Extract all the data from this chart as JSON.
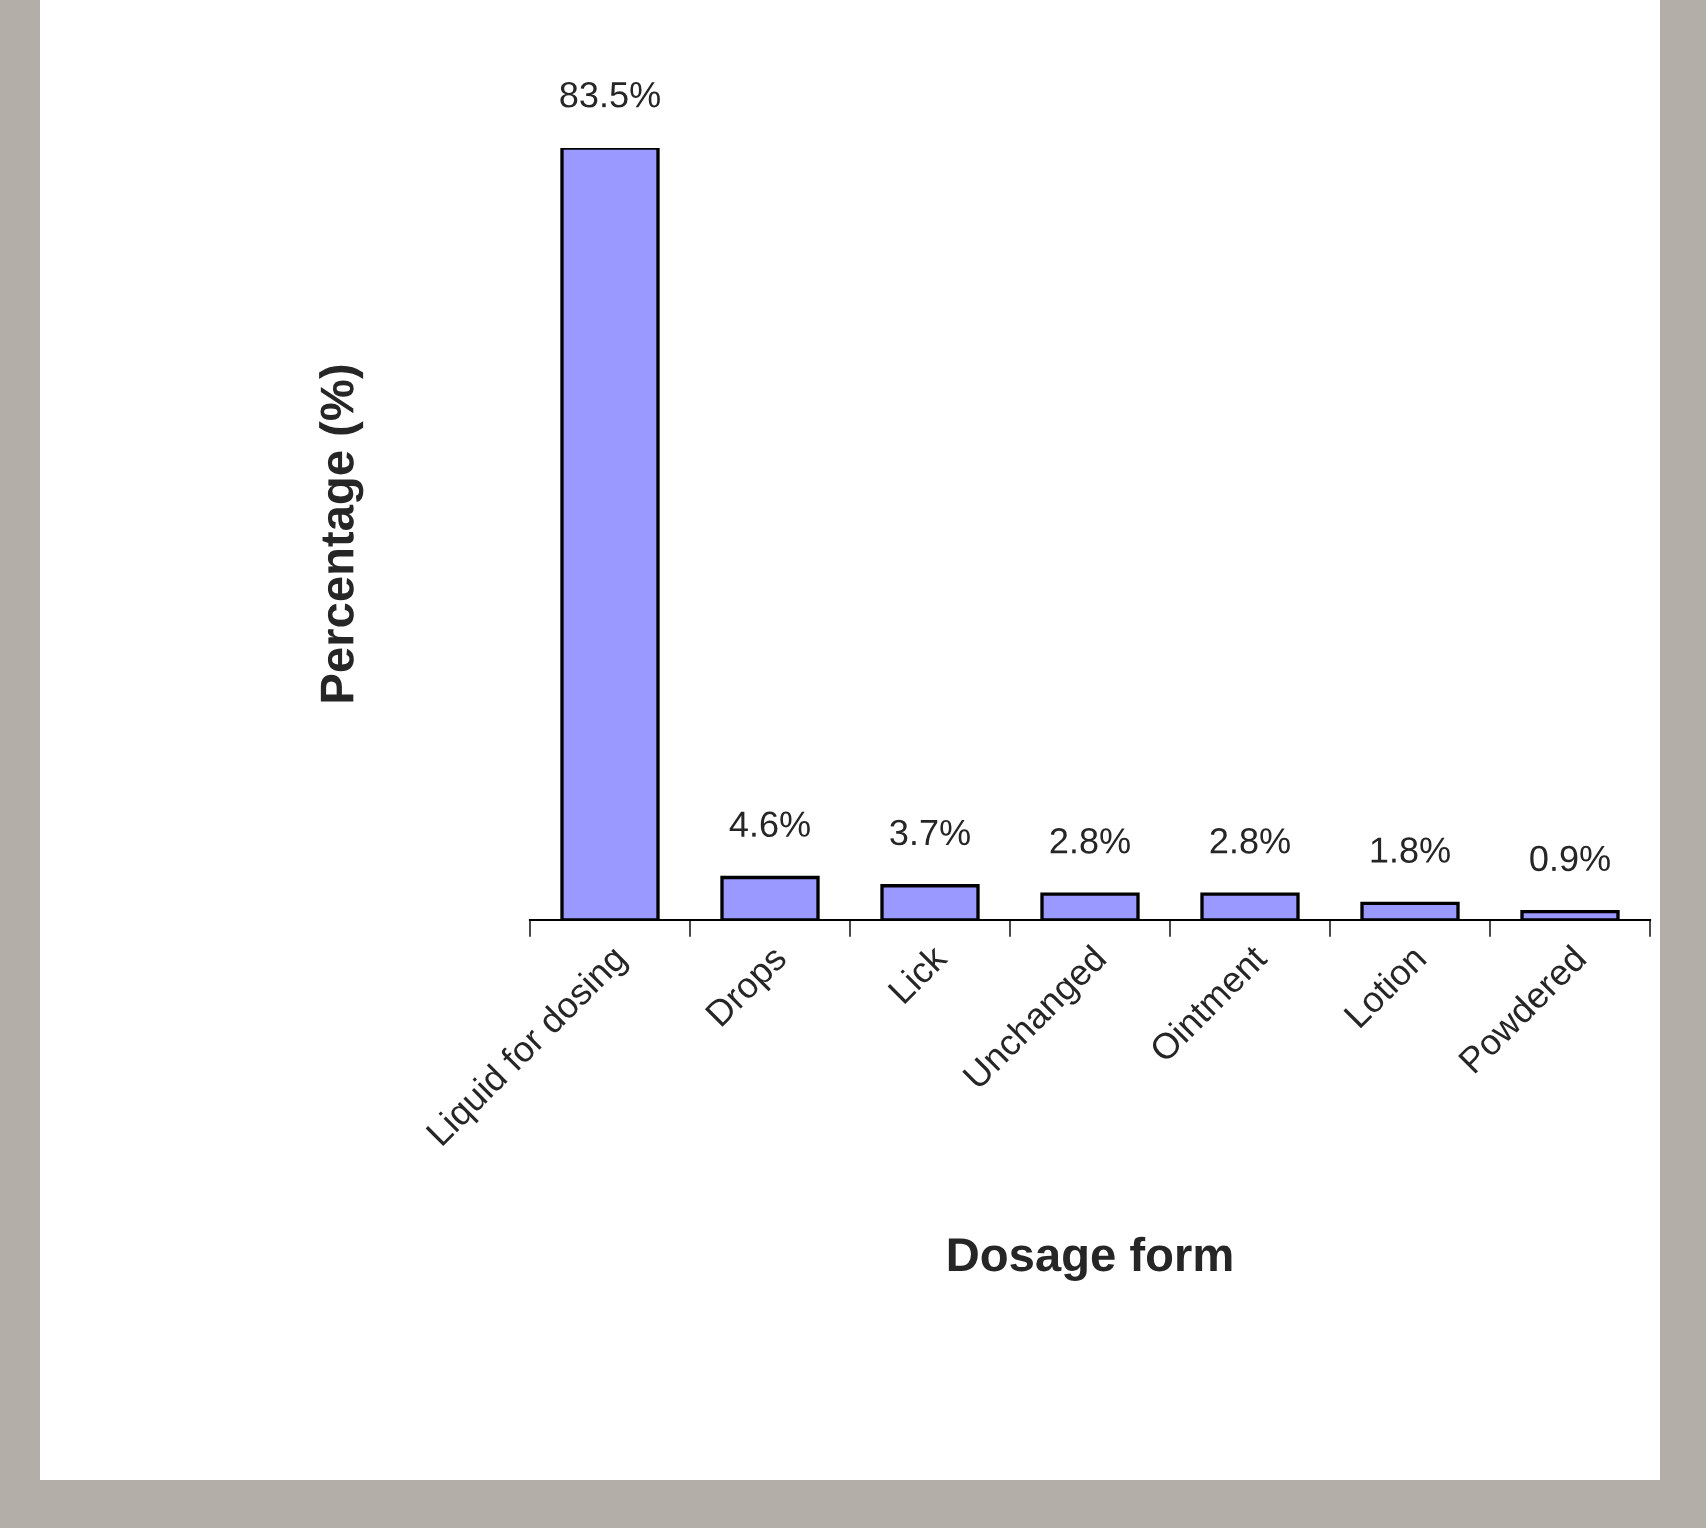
{
  "chart_data": {
    "type": "bar",
    "xlabel": "Dosage form",
    "ylabel": "Percentage (%)",
    "categories": [
      "Liquid for dosing",
      "Drops",
      "Lick",
      "Unchanged",
      "Ointment",
      "Lotion",
      "Powdered"
    ],
    "values": [
      83.5,
      4.6,
      3.7,
      2.8,
      2.8,
      1.8,
      0.9
    ],
    "value_labels": [
      "83.5%",
      "4.6%",
      "3.7%",
      "2.8%",
      "2.8%",
      "1.8%",
      "0.9%"
    ],
    "color": "#9999ff",
    "grid": false,
    "legend": false
  }
}
